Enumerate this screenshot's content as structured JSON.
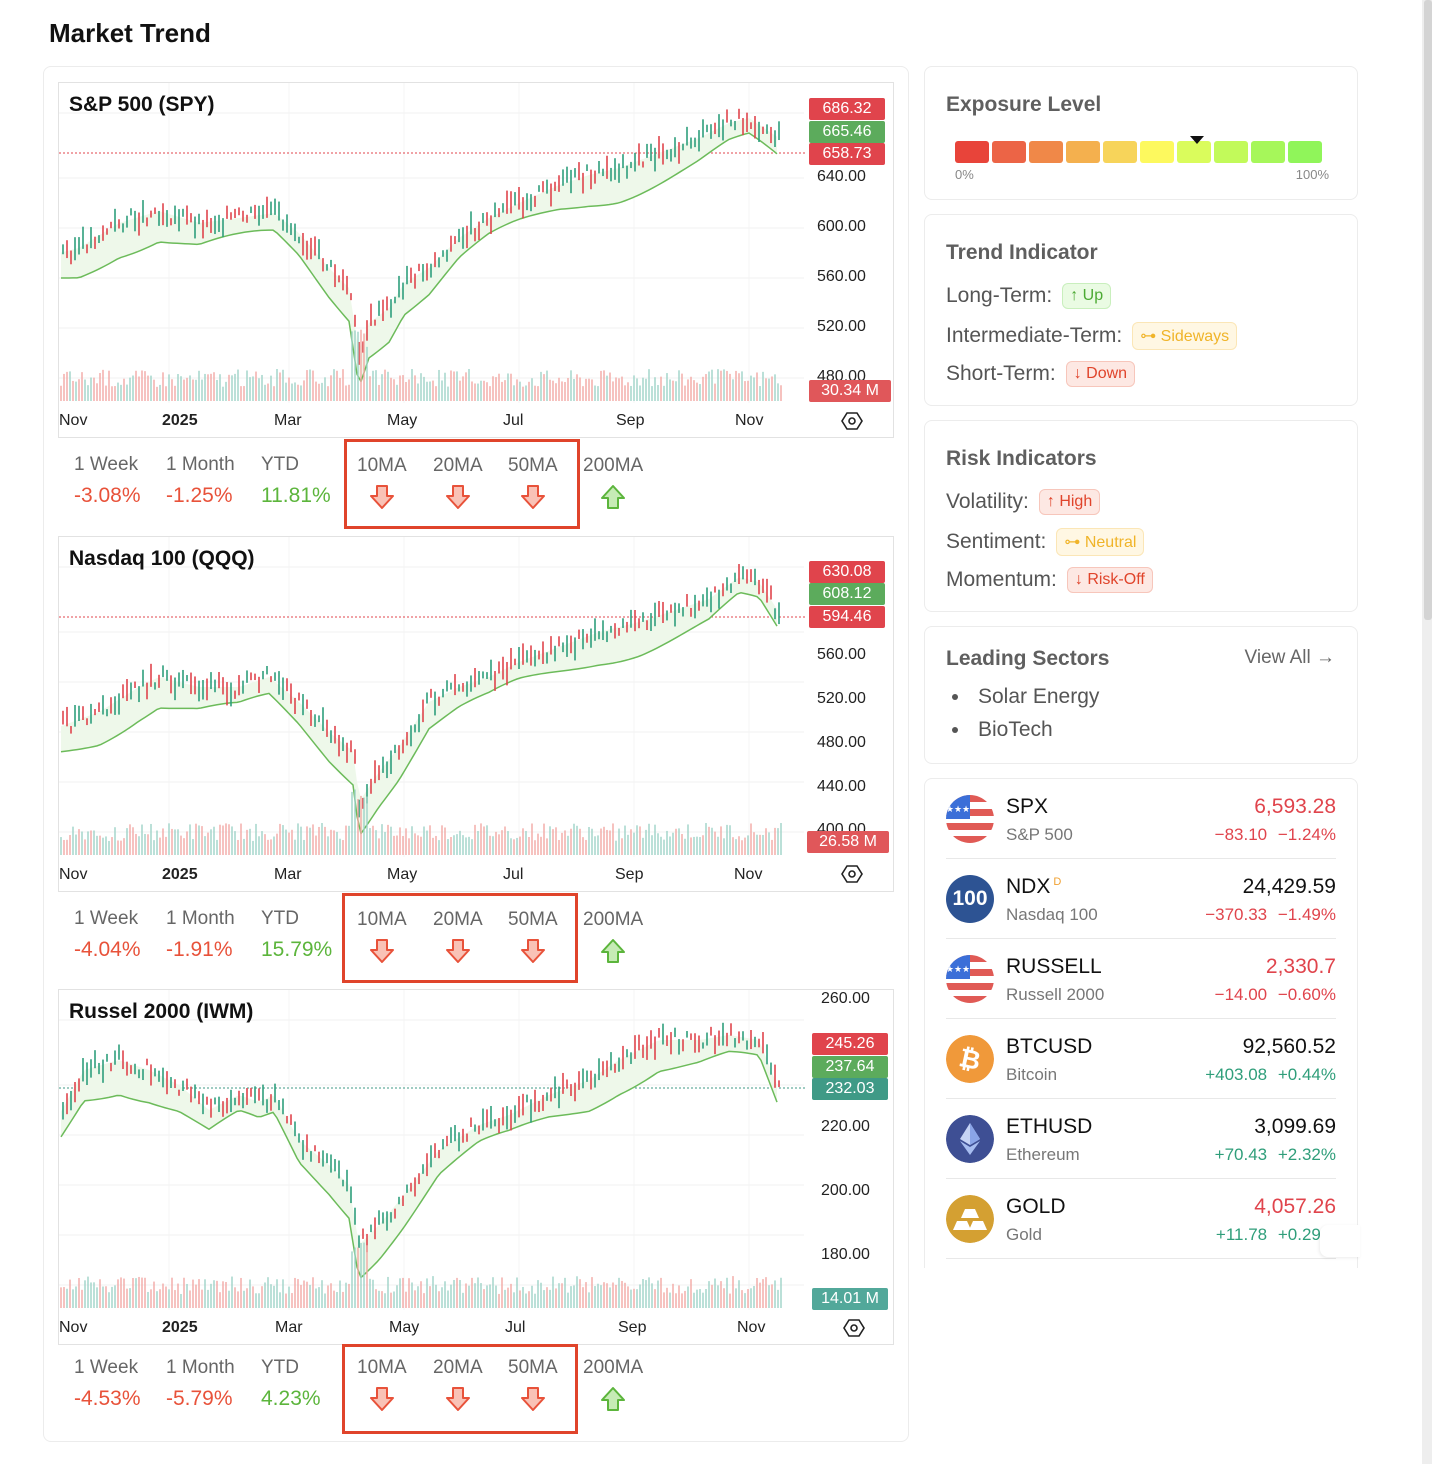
{
  "page": {
    "title": "Market Trend"
  },
  "colors": {
    "up": "#26a69a",
    "down": "#ef5350",
    "cloud_up": "#eaf6e6",
    "cloud_down": "#fde6e4",
    "support": "#66bb6a",
    "resistance": "#e53935",
    "ma_box": "#e0442b"
  },
  "charts": [
    {
      "title": "S&P 500 (SPY)",
      "x_labels": [
        "Nov",
        "2025",
        "Mar",
        "May",
        "Jul",
        "Sep",
        "Nov"
      ],
      "y_ticks": [
        "640.00",
        "600.00",
        "560.00",
        "520.00",
        "480.00"
      ],
      "price_tags": [
        {
          "value": "686.32",
          "color": "#e0444c"
        },
        {
          "value": "665.46",
          "color": "#5cab5c"
        },
        {
          "value": "658.73",
          "color": "#e0444c"
        }
      ],
      "volume_tag": {
        "value": "30.34 M",
        "color": "#e0575a"
      },
      "stats": {
        "week_label": "1 Week",
        "week": "-3.08%",
        "month_label": "1 Month",
        "month": "-1.25%",
        "ytd_label": "YTD",
        "ytd": "11.81%"
      },
      "ma": [
        {
          "label": "10MA",
          "direction": "down"
        },
        {
          "label": "20MA",
          "direction": "down"
        },
        {
          "label": "50MA",
          "direction": "down"
        },
        {
          "label": "200MA",
          "direction": "up"
        }
      ]
    },
    {
      "title": "Nasdaq 100 (QQQ)",
      "x_labels": [
        "Nov",
        "2025",
        "Mar",
        "May",
        "Jul",
        "Sep",
        "Nov"
      ],
      "y_ticks": [
        "560.00",
        "520.00",
        "480.00",
        "440.00",
        "400.00"
      ],
      "price_tags": [
        {
          "value": "630.08",
          "color": "#e0444c"
        },
        {
          "value": "608.12",
          "color": "#5cab5c"
        },
        {
          "value": "594.46",
          "color": "#e0444c"
        }
      ],
      "volume_tag": {
        "value": "26.58 M",
        "color": "#e0575a"
      },
      "stats": {
        "week_label": "1 Week",
        "week": "-4.04%",
        "month_label": "1 Month",
        "month": "-1.91%",
        "ytd_label": "YTD",
        "ytd": "15.79%"
      },
      "ma": [
        {
          "label": "10MA",
          "direction": "down"
        },
        {
          "label": "20MA",
          "direction": "down"
        },
        {
          "label": "50MA",
          "direction": "down"
        },
        {
          "label": "200MA",
          "direction": "up"
        }
      ]
    },
    {
      "title": "Russel 2000 (IWM)",
      "x_labels": [
        "Nov",
        "2025",
        "Mar",
        "May",
        "Jul",
        "Sep",
        "Nov"
      ],
      "y_ticks": [
        "260.00",
        "220.00",
        "200.00",
        "180.00"
      ],
      "price_tags": [
        {
          "value": "245.26",
          "color": "#e0444c"
        },
        {
          "value": "237.64",
          "color": "#5cab5c"
        },
        {
          "value": "232.03",
          "color": "#3f9a86"
        }
      ],
      "volume_tag": {
        "value": "14.01 M",
        "color": "#52a89a"
      },
      "stats": {
        "week_label": "1 Week",
        "week": "-4.53%",
        "month_label": "1 Month",
        "month": "-5.79%",
        "ytd_label": "YTD",
        "ytd": "4.23%"
      },
      "ma": [
        {
          "label": "10MA",
          "direction": "down"
        },
        {
          "label": "20MA",
          "direction": "down"
        },
        {
          "label": "50MA",
          "direction": "down"
        },
        {
          "label": "200MA",
          "direction": "up"
        }
      ]
    }
  ],
  "exposure": {
    "title": "Exposure Level",
    "min_label": "0%",
    "max_label": "100%",
    "segments": [
      "#e8443a",
      "#ec6446",
      "#f08848",
      "#f4b04e",
      "#f7d45a",
      "#fdf95e",
      "#dafc5c",
      "#c2fa5a",
      "#a6f75a",
      "#90f55a"
    ],
    "marker_segment": 7
  },
  "trend": {
    "title": "Trend Indicator",
    "rows": [
      {
        "label": "Long-Term:",
        "badge": "↑ Up",
        "kind": "up"
      },
      {
        "label": "Intermediate-Term:",
        "badge": "⊶ Sideways",
        "kind": "side"
      },
      {
        "label": "Short-Term:",
        "badge": "↓ Down",
        "kind": "down"
      }
    ]
  },
  "risk": {
    "title": "Risk Indicators",
    "rows": [
      {
        "label": "Volatility:",
        "badge": "↑ High",
        "kind": "down"
      },
      {
        "label": "Sentiment:",
        "badge": "⊶ Neutral",
        "kind": "side"
      },
      {
        "label": "Momentum:",
        "badge": "↓ Risk-Off",
        "kind": "down"
      }
    ]
  },
  "sectors": {
    "title": "Leading Sectors",
    "view_all": "View All →",
    "items": [
      "Solar Energy",
      "BioTech"
    ]
  },
  "tickers": [
    {
      "symbol": "SPX",
      "name": "S&P 500",
      "price": "6,593.28",
      "change": "−83.10",
      "pct": "−1.24%",
      "price_color": "red",
      "chg_color": "red",
      "icon": "us-flag-icon"
    },
    {
      "symbol": "NDX",
      "sup": "D",
      "name": "Nasdaq 100",
      "price": "24,429.59",
      "change": "−370.33",
      "pct": "−1.49%",
      "price_color": "blk",
      "chg_color": "red",
      "icon": "nasdaq-100-icon",
      "icon_text": "100"
    },
    {
      "symbol": "RUSSELL",
      "name": "Russell 2000",
      "price": "2,330.7",
      "change": "−14.00",
      "pct": "−0.60%",
      "price_color": "red",
      "chg_color": "red",
      "icon": "us-flag-icon"
    },
    {
      "symbol": "BTCUSD",
      "name": "Bitcoin",
      "price": "92,560.52",
      "change": "+403.08",
      "pct": "+0.44%",
      "price_color": "blk",
      "chg_color": "grn",
      "icon": "bitcoin-icon"
    },
    {
      "symbol": "ETHUSD",
      "name": "Ethereum",
      "price": "3,099.69",
      "change": "+70.43",
      "pct": "+2.32%",
      "price_color": "blk",
      "chg_color": "grn",
      "icon": "ethereum-icon"
    },
    {
      "symbol": "GOLD",
      "name": "Gold",
      "price": "4,057.26",
      "change": "+11.78",
      "pct": "+0.29%",
      "price_color": "red",
      "chg_color": "grn",
      "icon": "gold-bars-icon"
    }
  ]
}
